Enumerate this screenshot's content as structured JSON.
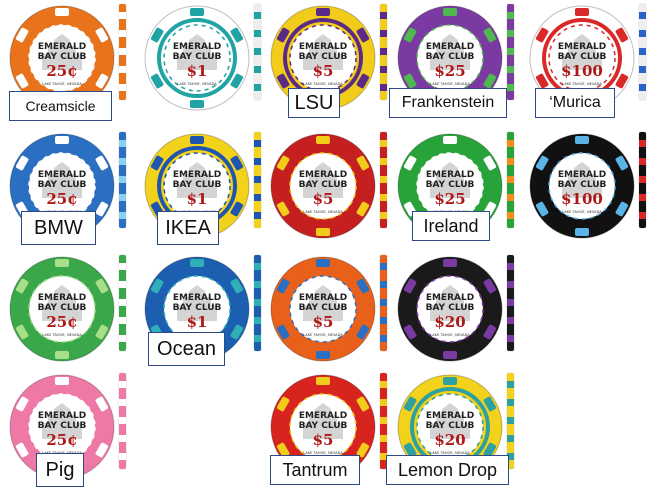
{
  "brand": {
    "line1": "EMERALD",
    "line2": "BAY CLUB",
    "tagline": "LAKE TAHOE, NEVADA"
  },
  "chips": [
    {
      "name": "Creamsicle",
      "denomination": "25¢",
      "ring": "#e8731a",
      "accent": "#ffffff",
      "stripe": "#ffffff",
      "inner": "#e8731a",
      "text": "#b01818"
    },
    {
      "name": "",
      "denomination": "$1",
      "ring": "#ffffff",
      "accent": "#1fa3a3",
      "stripe": "#1fa3a3",
      "inner": "#1fa3a3",
      "text": "#b01818"
    },
    {
      "name": "LSU",
      "denomination": "$5",
      "ring": "#f2cc1a",
      "accent": "#5b2a86",
      "stripe": "#5b2a86",
      "inner": "#5b2a86",
      "text": "#b01818"
    },
    {
      "name": "Frankenstein",
      "denomination": "$25",
      "ring": "#7b3aa1",
      "accent": "#4fb84f",
      "stripe": "#4fb84f",
      "inner": "#7b3aa1",
      "text": "#b01818"
    },
    {
      "name": "‘Murica",
      "denomination": "$100",
      "ring": "#ffffff",
      "accent": "#d92828",
      "stripe": "#2a64c8",
      "inner": "#d92828",
      "text": "#b01818"
    },
    {
      "name": "BMW",
      "denomination": "25¢",
      "ring": "#2a6fc2",
      "accent": "#ffffff",
      "stripe": "#8ad0f0",
      "inner": "#2a6fc2",
      "text": "#b01818"
    },
    {
      "name": "IKEA",
      "denomination": "$1",
      "ring": "#f2d21a",
      "accent": "#1e55b0",
      "stripe": "#1e55b0",
      "inner": "#1e55b0",
      "text": "#b01818"
    },
    {
      "name": "",
      "denomination": "$5",
      "ring": "#c61f1f",
      "accent": "#f2cc1a",
      "stripe": "#f2cc1a",
      "inner": "#c61f1f",
      "text": "#b01818"
    },
    {
      "name": "Ireland",
      "denomination": "$25",
      "ring": "#27a33a",
      "accent": "#ffffff",
      "stripe": "#f28c1a",
      "inner": "#27a33a",
      "text": "#b01818"
    },
    {
      "name": "",
      "denomination": "$100",
      "ring": "#111111",
      "accent": "#5ab4e6",
      "stripe": "#d92828",
      "inner": "#111111",
      "text": "#b01818"
    },
    {
      "name": "",
      "denomination": "25¢",
      "ring": "#3aa84a",
      "accent": "#a8e08a",
      "stripe": "#ffffff",
      "inner": "#3aa84a",
      "text": "#b01818"
    },
    {
      "name": "Ocean",
      "denomination": "$1",
      "ring": "#1c5fb0",
      "accent": "#2fb0b8",
      "stripe": "#2fb0b8",
      "inner": "#1c5fb0",
      "text": "#b01818"
    },
    {
      "name": "",
      "denomination": "$5",
      "ring": "#e8601a",
      "accent": "#2a6fc2",
      "stripe": "#2a6fc2",
      "inner": "#e8601a",
      "text": "#b01818"
    },
    {
      "name": "",
      "denomination": "$20",
      "ring": "#1a1a1a",
      "accent": "#7b3aa1",
      "stripe": "#7b3aa1",
      "inner": "#1a1a1a",
      "text": "#b01818"
    },
    {
      "name": "Pig",
      "denomination": "25¢",
      "ring": "#ef79a6",
      "accent": "#ffffff",
      "stripe": "#ffffff",
      "inner": "#ef79a6",
      "text": "#b01818"
    },
    {
      "name": "Tantrum",
      "denomination": "$5",
      "ring": "#d8241f",
      "accent": "#f2cc1a",
      "stripe": "#f2cc1a",
      "inner": "#d8241f",
      "text": "#b01818"
    },
    {
      "name": "Lemon Drop",
      "denomination": "$20",
      "ring": "#f2d21a",
      "accent": "#2fa0a0",
      "stripe": "#2fa0a0",
      "inner": "#2fa0a0",
      "text": "#b01818"
    }
  ]
}
